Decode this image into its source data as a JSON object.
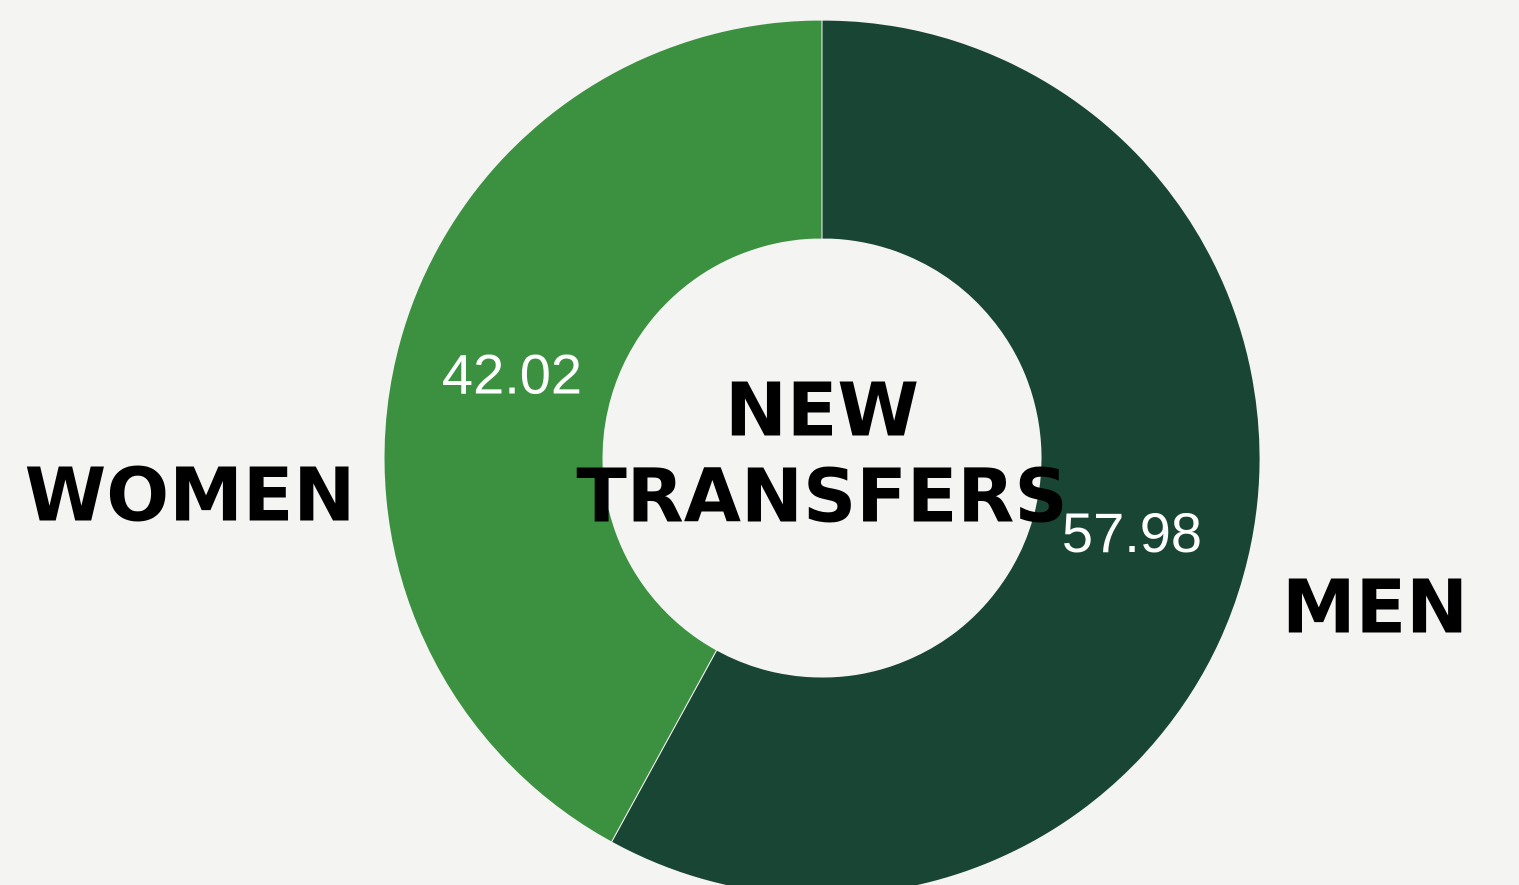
{
  "chart_data": {
    "type": "pie",
    "donut": true,
    "center_label": [
      "NEW",
      "TRANSFERS"
    ],
    "categories": [
      "MEN",
      "WOMEN"
    ],
    "values": [
      57.98,
      42.02
    ],
    "colors": [
      "#194634",
      "#3c9141"
    ]
  }
}
